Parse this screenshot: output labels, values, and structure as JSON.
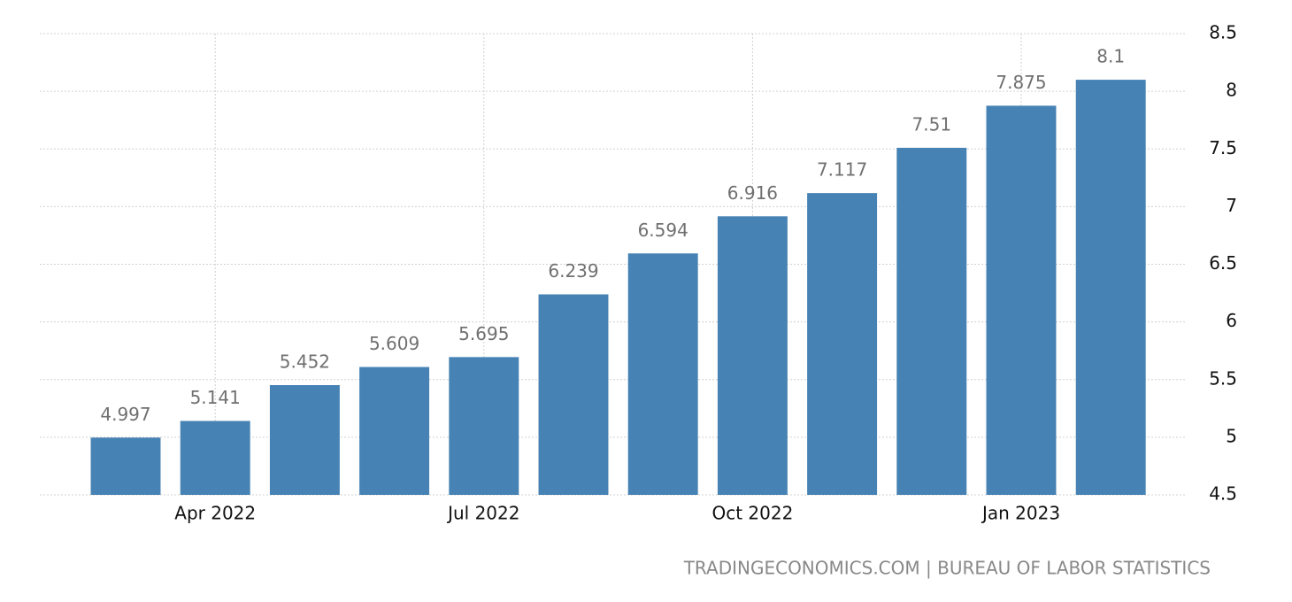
{
  "chart_data": {
    "type": "bar",
    "categories": [
      null,
      "Apr 2022",
      null,
      null,
      "Jul 2022",
      null,
      null,
      "Oct 2022",
      null,
      null,
      "Jan 2023",
      null
    ],
    "values": [
      4.997,
      5.141,
      5.452,
      5.609,
      5.695,
      6.239,
      6.594,
      6.916,
      7.117,
      7.51,
      7.875,
      8.1
    ],
    "color": "#4682b4",
    "ylim": [
      4.5,
      8.5
    ],
    "yticks": [
      4.5,
      5,
      5.5,
      6,
      6.5,
      7,
      7.5,
      8,
      8.5
    ],
    "grid": true,
    "source": "TRADINGECONOMICS.COM | BUREAU OF LABOR STATISTICS"
  }
}
